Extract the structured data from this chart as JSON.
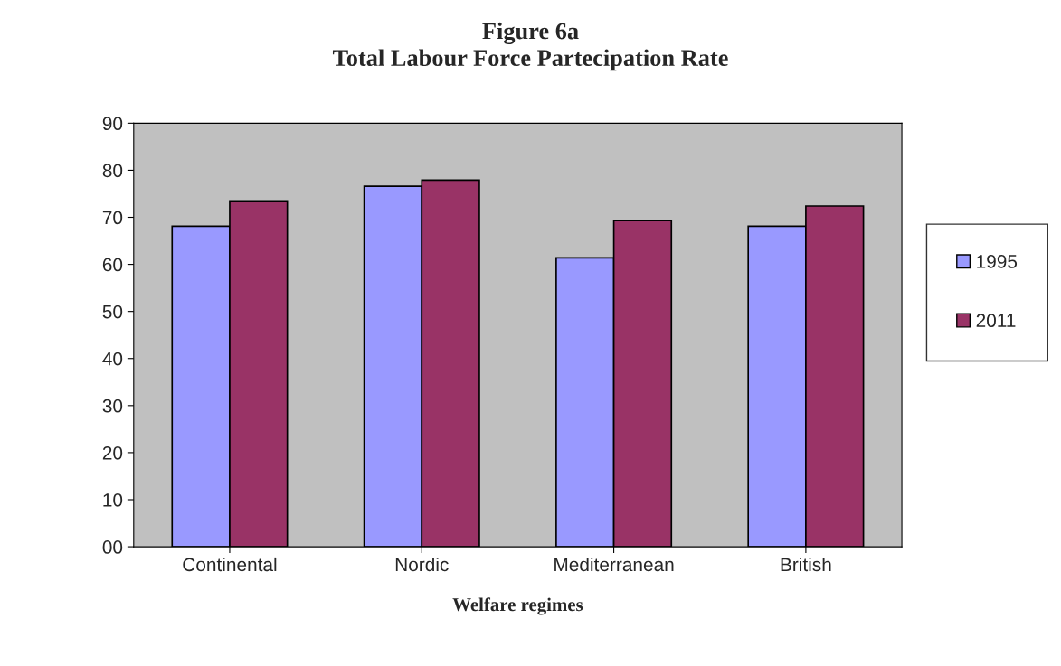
{
  "chart_data": {
    "type": "bar",
    "title": "Figure 6a\nTotal Labour Force Partecipation Rate",
    "xlabel": "Welfare regimes",
    "categories": [
      "Continental",
      "Nordic",
      "Mediterranean",
      "British"
    ],
    "series": [
      {
        "name": "1995",
        "color": "#9999ff",
        "values": [
          68.1,
          76.6,
          61.4,
          68.1
        ]
      },
      {
        "name": "2011",
        "color": "#993366",
        "values": [
          73.5,
          77.9,
          69.3,
          72.4
        ]
      }
    ],
    "ylim": [
      0,
      90
    ],
    "yticks": [
      {
        "value": 0,
        "label": "00"
      },
      10,
      20,
      30,
      40,
      50,
      60,
      70,
      80,
      90
    ],
    "grid": false,
    "legend": "right"
  }
}
